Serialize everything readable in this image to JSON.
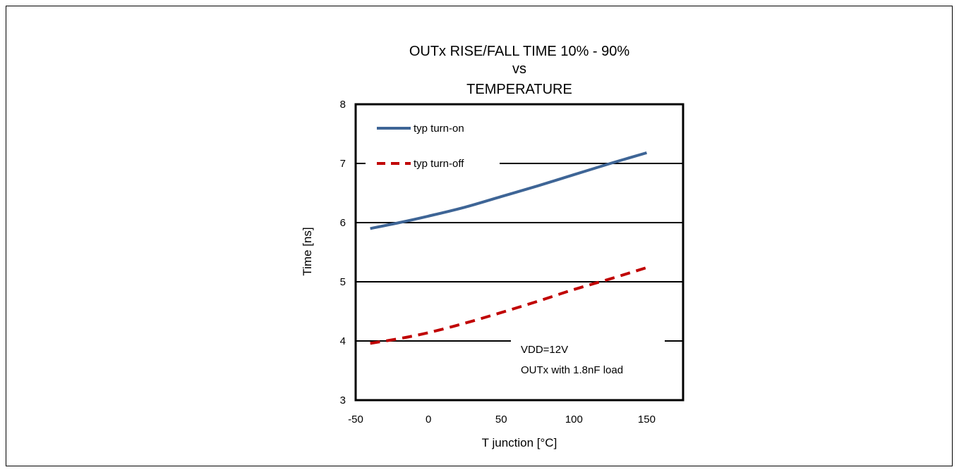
{
  "chart_data": {
    "type": "line",
    "title_lines": [
      "OUTx RISE/FALL TIME 10% - 90%",
      "vs",
      "TEMPERATURE"
    ],
    "xlabel": "T junction  [°C]",
    "ylabel": "Time [ns]",
    "xlim": [
      -50,
      175
    ],
    "ylim": [
      3,
      8
    ],
    "xticks": [
      -50,
      0,
      50,
      100,
      150
    ],
    "yticks": [
      3,
      4,
      5,
      6,
      7,
      8
    ],
    "grid": "horizontal",
    "series": [
      {
        "name": "typ turn-on",
        "color": "#3e6596",
        "style": "solid",
        "x": [
          -40,
          -20,
          0,
          25,
          50,
          75,
          100,
          125,
          150
        ],
        "y": [
          5.9,
          6.0,
          6.11,
          6.26,
          6.44,
          6.62,
          6.81,
          7.0,
          7.18
        ]
      },
      {
        "name": "typ turn-off",
        "color": "#c00000",
        "style": "dashed",
        "x": [
          -40,
          -20,
          0,
          25,
          50,
          75,
          100,
          125,
          150
        ],
        "y": [
          3.96,
          4.04,
          4.14,
          4.3,
          4.48,
          4.67,
          4.87,
          5.05,
          5.24
        ]
      }
    ],
    "annotations": [
      "VDD=12V",
      "OUTx with 1.8nF load"
    ],
    "legend_position": "top-left"
  }
}
